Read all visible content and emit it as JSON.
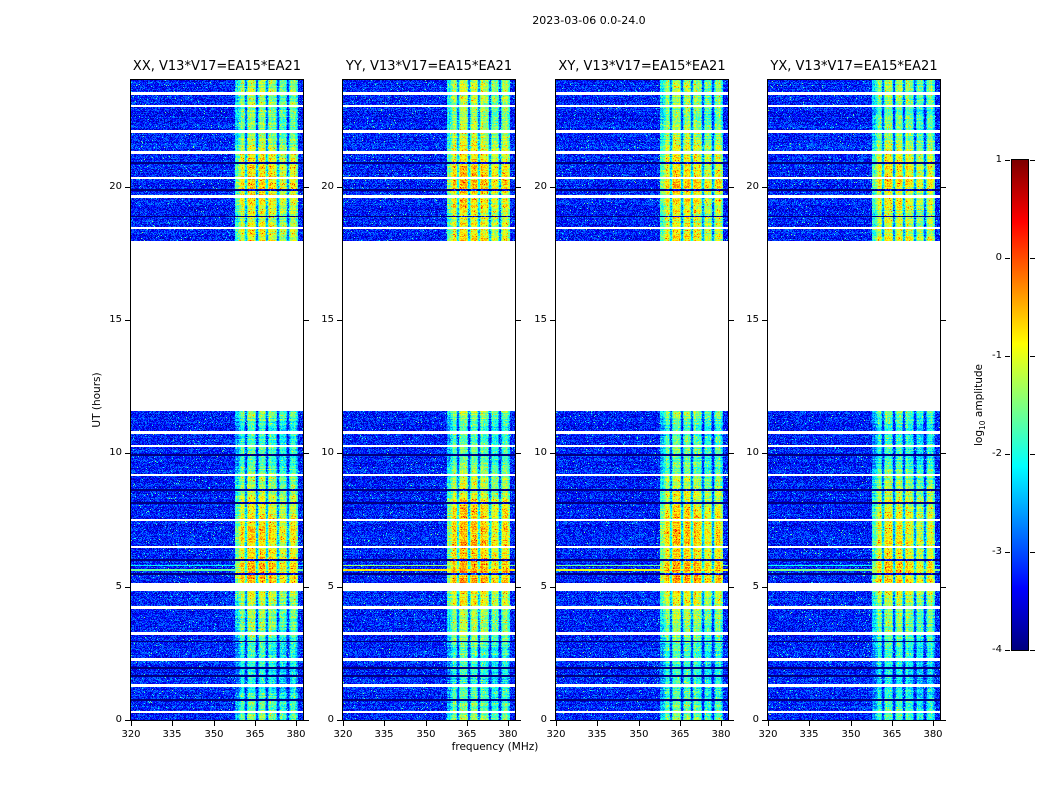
{
  "figure_title": "2023-03-06 0.0-24.0",
  "chart_data": {
    "type": "heatmap",
    "xlabel": "frequency (MHz)",
    "ylabel": "UT (hours)",
    "x_ticks": [
      320,
      335,
      350,
      365,
      380
    ],
    "y_ticks": [
      0,
      5,
      10,
      15,
      20
    ],
    "xlim": [
      320,
      382.5
    ],
    "ylim": [
      0,
      24
    ],
    "panels": [
      {
        "title": "XX, V13*V17=EA15*EA21",
        "band_offset": 0.0
      },
      {
        "title": "YY, V13*V17=EA15*EA21",
        "band_offset": 0.15
      },
      {
        "title": "XY, V13*V17=EA15*EA21",
        "band_offset": 0.08
      },
      {
        "title": "YX, V13*V17=EA15*EA21",
        "band_offset": -0.1
      }
    ],
    "colorbar": {
      "label_prefix": "log",
      "label_sub": "10",
      "label_suffix": " amplitude",
      "ticks": [
        "1",
        "0",
        "-1",
        "-2",
        "-3",
        "-4"
      ],
      "tick_values": [
        1,
        0,
        -1,
        -2,
        -3,
        -4
      ],
      "vmin": -4,
      "vmax": 1,
      "colormap": "jet"
    },
    "background_level": -3.25,
    "rfi_band_mhz": [
      357.8,
      380.6
    ],
    "band_notches_mhz": [
      361.9,
      365.7,
      369.5,
      373.3,
      377.1
    ],
    "band_profile": [
      [
        0.0,
        -1.6
      ],
      [
        0.8,
        -1.9
      ],
      [
        1.5,
        -2.2
      ],
      [
        2.0,
        -2.1
      ],
      [
        2.8,
        -1.9
      ],
      [
        3.5,
        -1.55
      ],
      [
        4.2,
        -1.4
      ],
      [
        4.6,
        -1.2
      ],
      [
        5.2,
        -0.75
      ],
      [
        5.7,
        -0.65
      ],
      [
        6.2,
        -0.95
      ],
      [
        6.8,
        -0.85
      ],
      [
        7.4,
        -0.9
      ],
      [
        7.9,
        -1.0
      ],
      [
        8.6,
        -1.3
      ],
      [
        9.0,
        -1.45
      ],
      [
        9.6,
        -1.8
      ],
      [
        10.3,
        -1.85
      ],
      [
        10.9,
        -2.1
      ],
      [
        11.25,
        -1.75
      ],
      [
        11.55,
        -1.5
      ],
      [
        17.95,
        -1.0
      ],
      [
        18.4,
        -1.1
      ],
      [
        18.8,
        -1.25
      ],
      [
        19.3,
        -1.05
      ],
      [
        19.8,
        -1.0
      ],
      [
        20.2,
        -0.8
      ],
      [
        20.7,
        -0.95
      ],
      [
        21.2,
        -1.05
      ],
      [
        21.6,
        -1.3
      ],
      [
        22.2,
        -1.55
      ],
      [
        22.8,
        -1.6
      ],
      [
        23.3,
        -1.45
      ],
      [
        23.7,
        -1.4
      ],
      [
        24.0,
        -1.45
      ]
    ],
    "data_gaps_ut": [
      [
        11.58,
        17.95
      ],
      [
        23.44,
        23.54
      ],
      [
        22.98,
        23.08
      ],
      [
        22.03,
        22.13
      ],
      [
        21.22,
        21.32
      ],
      [
        20.3,
        20.38
      ],
      [
        19.58,
        19.68
      ],
      [
        18.4,
        18.5
      ],
      [
        10.72,
        10.82
      ],
      [
        10.24,
        10.32
      ],
      [
        9.14,
        9.24
      ],
      [
        7.46,
        7.54
      ],
      [
        6.45,
        6.53
      ],
      [
        4.82,
        5.15
      ],
      [
        4.16,
        4.26
      ],
      [
        3.19,
        3.29
      ],
      [
        2.21,
        2.31
      ],
      [
        1.24,
        1.34
      ],
      [
        0.27,
        0.35
      ]
    ],
    "dark_rows_ut": [
      [
        20.86,
        20.93
      ],
      [
        19.84,
        19.9
      ],
      [
        18.86,
        18.91
      ],
      [
        9.9,
        9.96
      ],
      [
        8.6,
        8.66
      ],
      [
        8.11,
        8.16
      ],
      [
        5.97,
        6.03
      ],
      [
        5.45,
        5.5
      ],
      [
        2.93,
        2.98
      ],
      [
        1.92,
        1.97
      ],
      [
        1.62,
        1.67
      ],
      [
        0.72,
        0.77
      ]
    ],
    "bright_rows": [
      {
        "ut_range": [
          5.6,
          5.68
        ],
        "levels": [
          -1.6,
          -0.75,
          -0.95,
          -1.5
        ]
      },
      {
        "ut_range": [
          5.76,
          5.82
        ],
        "levels": [
          -2.2,
          -1.4,
          -1.6,
          -2.1
        ]
      }
    ]
  }
}
